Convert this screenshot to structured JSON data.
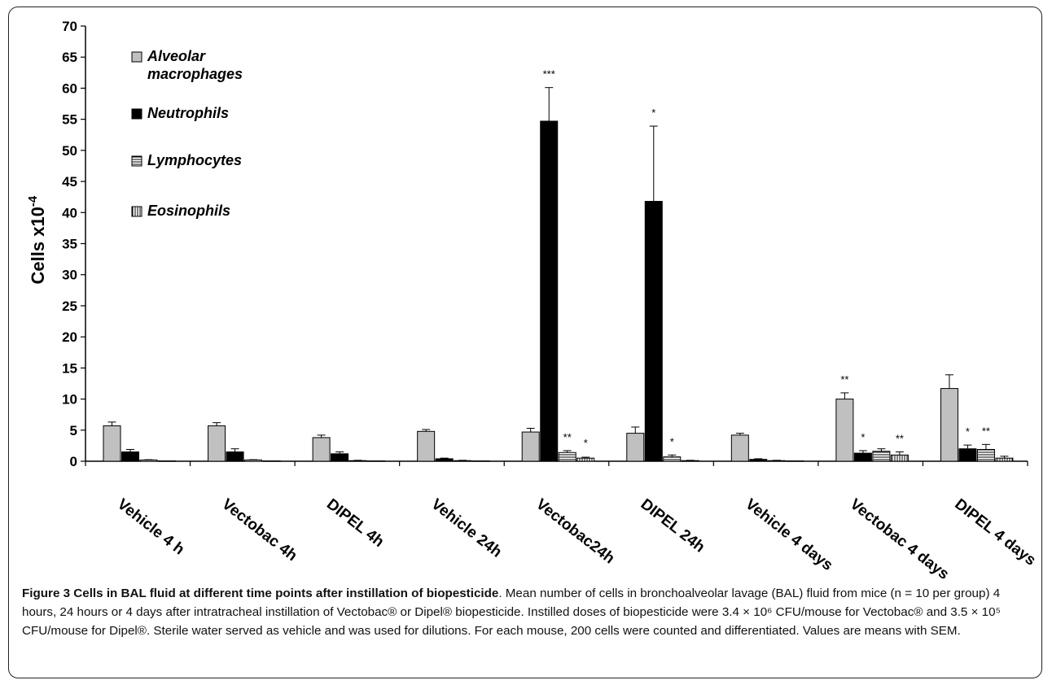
{
  "chart_data": {
    "type": "bar",
    "ylabel": "Cells x10",
    "ylabel_exponent": "-4",
    "ylim": [
      0,
      70
    ],
    "yticks": [
      0,
      5,
      10,
      15,
      20,
      25,
      30,
      35,
      40,
      45,
      50,
      55,
      60,
      65,
      70
    ],
    "grid": false,
    "legend_position": "top-left",
    "categories": [
      "Vehicle 4 h",
      "Vectobac 4h",
      "DIPEL 4h",
      "Vehicle 24h",
      "Vectobac24h",
      "DIPEL 24h",
      "Vehicle 4 days",
      "Vectobac 4 days",
      "DIPEL 4 days"
    ],
    "series": [
      {
        "name": "Alveolar macrophages",
        "fill": "#c0c0c0",
        "pattern": "solid-gray",
        "values": [
          5.7,
          5.7,
          3.8,
          4.8,
          4.7,
          4.5,
          4.2,
          10.0,
          11.7
        ],
        "errors": [
          0.6,
          0.5,
          0.4,
          0.3,
          0.6,
          1.0,
          0.3,
          1.0,
          2.2
        ],
        "significance": [
          "",
          "",
          "",
          "",
          "",
          "",
          "",
          "**",
          ""
        ]
      },
      {
        "name": "Neutrophils",
        "fill": "#000000",
        "pattern": "solid-black",
        "values": [
          1.5,
          1.5,
          1.2,
          0.4,
          54.7,
          41.8,
          0.3,
          1.3,
          2.0
        ],
        "errors": [
          0.4,
          0.5,
          0.3,
          0.1,
          5.4,
          12.1,
          0.1,
          0.4,
          0.6
        ],
        "significance": [
          "",
          "",
          "",
          "",
          "***",
          "*",
          "",
          "*",
          "*"
        ]
      },
      {
        "name": "Lymphocytes",
        "fill": "#ffffff",
        "pattern": "horizontal-stripes",
        "values": [
          0.2,
          0.2,
          0.1,
          0.1,
          1.4,
          0.7,
          0.1,
          1.6,
          1.9
        ],
        "errors": [
          0.05,
          0.05,
          0.05,
          0.05,
          0.3,
          0.3,
          0.05,
          0.4,
          0.8
        ],
        "significance": [
          "",
          "",
          "",
          "",
          "**",
          "*",
          "",
          "",
          "**"
        ]
      },
      {
        "name": "Eosinophils",
        "fill": "#ffffff",
        "pattern": "vertical-stripes",
        "values": [
          0.05,
          0.05,
          0.05,
          0.05,
          0.5,
          0.1,
          0.05,
          1.0,
          0.5
        ],
        "errors": [
          0.02,
          0.02,
          0.02,
          0.02,
          0.15,
          0.05,
          0.02,
          0.5,
          0.3
        ],
        "significance": [
          "",
          "",
          "",
          "",
          "*",
          "",
          "",
          "**",
          ""
        ]
      }
    ]
  },
  "caption": {
    "title": "Figure 3 Cells in BAL fluid at different time points after instillation of biopesticide",
    "text": ". Mean number of cells in bronchoalveolar lavage (BAL) fluid from mice (n = 10 per group) 4 hours, 24 hours or 4 days after intratracheal instillation of Vectobac® or Dipel® biopesticide. Instilled doses of biopesticide were 3.4 × 10⁶ CFU/mouse for Vectobac® and 3.5 × 10⁵ CFU/mouse for Dipel®. Sterile water served as vehicle and was used for dilutions. For each mouse, 200 cells were counted and differentiated. Values are means with SEM."
  }
}
